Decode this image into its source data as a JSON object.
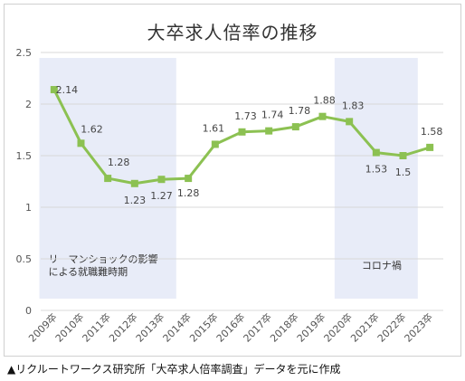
{
  "chart_data": {
    "type": "line",
    "title": "大卒求人倍率の推移",
    "categories": [
      "2009卒",
      "2010卒",
      "2011卒",
      "2012卒",
      "2013卒",
      "2014卒",
      "2015卒",
      "2016卒",
      "2017卒",
      "2018卒",
      "2019卒",
      "2020卒",
      "2021卒",
      "2022卒",
      "2023卒"
    ],
    "values": [
      2.14,
      1.62,
      1.28,
      1.23,
      1.27,
      1.28,
      1.61,
      1.73,
      1.74,
      1.78,
      1.88,
      1.83,
      1.53,
      1.5,
      1.58
    ],
    "value_labels": [
      "2.14",
      "1.62",
      "1.28",
      "1.23",
      "1.27",
      "1.28",
      "1.61",
      "1.73",
      "1.74",
      "1.78",
      "1.88",
      "1.83",
      "1.53",
      "1.5",
      "1.58"
    ],
    "ylim": [
      0,
      2.5
    ],
    "yticks": [
      "0",
      "0.5",
      "1",
      "1.5",
      "2",
      "2.5"
    ],
    "ytick_values": [
      0,
      0.5,
      1,
      1.5,
      2,
      2.5
    ],
    "line_color": "#8cc152",
    "shade_color": "#e8ecf8",
    "grid": true,
    "shaded_periods": [
      {
        "from": "2009卒",
        "to": "2013卒",
        "label_lines": [
          "リーマンショックの影響",
          "による就職難時期"
        ]
      },
      {
        "from": "2020卒",
        "to": "2022卒",
        "label_lines": [
          "コロナ禍"
        ]
      }
    ],
    "xlabel": "",
    "ylabel": ""
  },
  "source_note": "▲リクルートワークス研究所「大卒求人倍率調査」データを元に作成"
}
